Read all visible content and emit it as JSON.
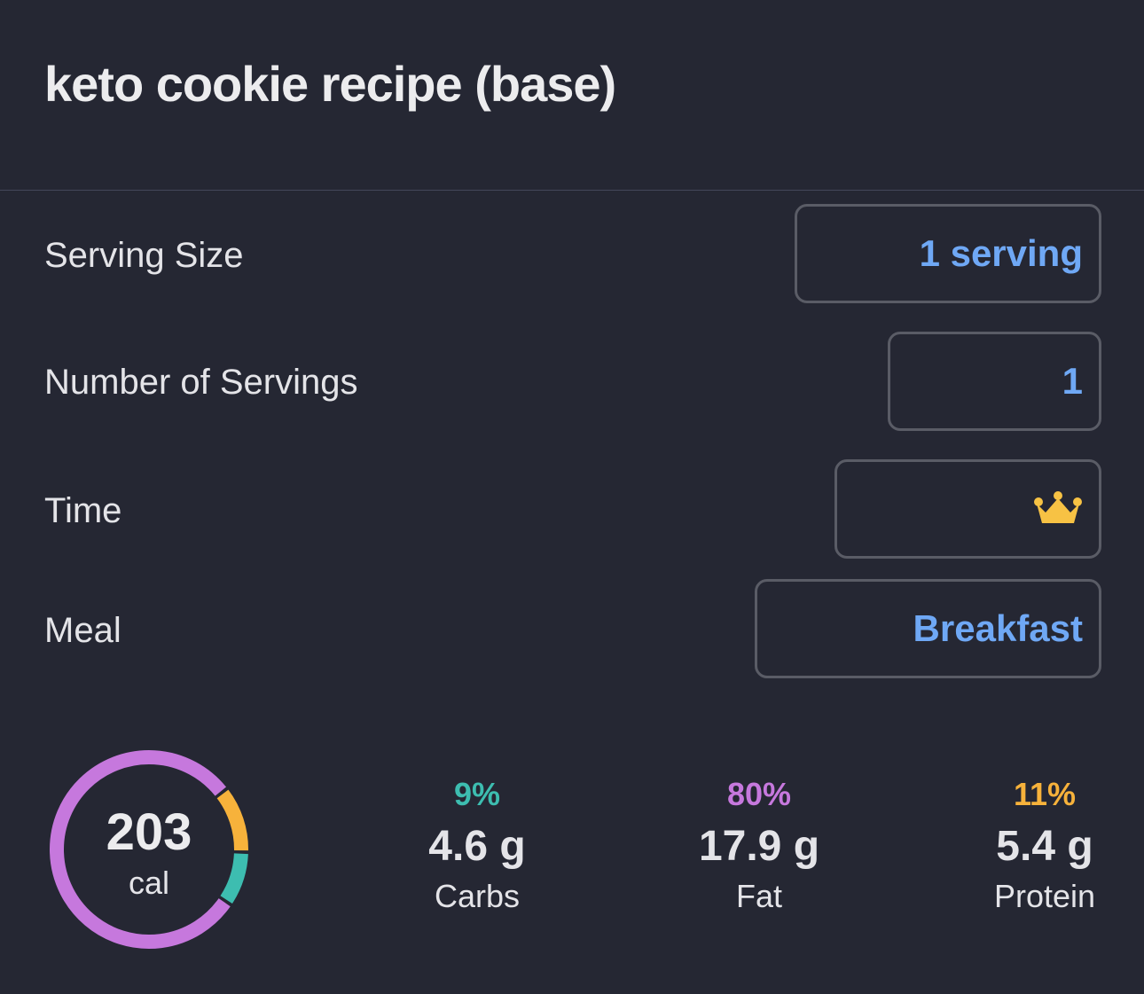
{
  "title": "keto cookie recipe (base)",
  "rows": [
    {
      "label": "Serving Size",
      "value": "1 serving"
    },
    {
      "label": "Number of Servings",
      "value": "1"
    },
    {
      "label": "Time",
      "icon": "crown-icon"
    },
    {
      "label": "Meal",
      "value": "Breakfast"
    }
  ],
  "calories": {
    "value": "203",
    "unit": "cal"
  },
  "macros": [
    {
      "pct": "9%",
      "grams": "4.6 g",
      "label": "Carbs",
      "color": "#3dbdb0",
      "fraction": 0.09
    },
    {
      "pct": "80%",
      "grams": "17.9 g",
      "label": "Fat",
      "color": "#c678dd",
      "fraction": 0.8
    },
    {
      "pct": "11%",
      "grams": "5.4 g",
      "label": "Protein",
      "color": "#f7b23b",
      "fraction": 0.11
    }
  ]
}
